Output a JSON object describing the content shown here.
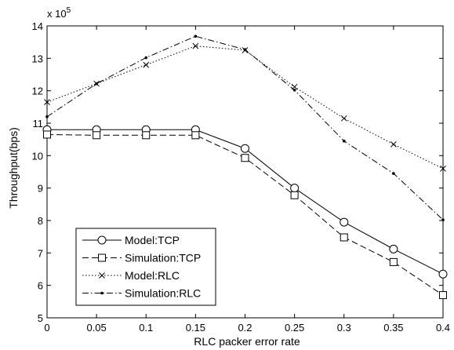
{
  "chart_data": {
    "type": "line",
    "xlabel": "RLC packer error rate",
    "ylabel": "Throughput(bps)",
    "y_multiplier_label": {
      "prefix": "x 10",
      "exponent": "5"
    },
    "xlim": [
      0,
      0.4
    ],
    "ylim": [
      5,
      14
    ],
    "x_ticks": [
      0,
      0.05,
      0.1,
      0.15,
      0.2,
      0.25,
      0.3,
      0.35,
      0.4
    ],
    "x_tick_labels": [
      "0",
      "0.05",
      "0.1",
      "0.15",
      "0.2",
      "0.25",
      "0.3",
      "0.35",
      "0.4"
    ],
    "y_ticks": [
      5,
      6,
      7,
      8,
      9,
      10,
      11,
      12,
      13,
      14
    ],
    "y_tick_labels": [
      "5",
      "6",
      "7",
      "8",
      "9",
      "10",
      "11",
      "12",
      "13",
      "14"
    ],
    "grid": false,
    "legend_position": "bottom-left",
    "x": [
      0,
      0.05,
      0.1,
      0.15,
      0.2,
      0.25,
      0.3,
      0.35,
      0.4
    ],
    "series": [
      {
        "name": "Model:TCP",
        "line": "solid",
        "marker": "circle",
        "color": "#000000",
        "values": [
          10.8,
          10.8,
          10.8,
          10.8,
          10.22,
          9.0,
          7.95,
          7.12,
          6.35
        ]
      },
      {
        "name": "Simulation:TCP",
        "line": "dashed",
        "marker": "square",
        "color": "#000000",
        "values": [
          10.65,
          10.63,
          10.63,
          10.63,
          9.93,
          8.78,
          7.48,
          6.72,
          5.7
        ]
      },
      {
        "name": "Model:RLC",
        "line": "dotted",
        "marker": "x",
        "color": "#000000",
        "values": [
          11.65,
          12.22,
          12.8,
          13.38,
          13.25,
          12.12,
          11.15,
          10.35,
          9.6
        ]
      },
      {
        "name": "Simulation:RLC",
        "line": "dashdot",
        "marker": "dot",
        "color": "#000000",
        "values": [
          11.2,
          12.22,
          13.02,
          13.68,
          13.27,
          12.02,
          10.45,
          9.45,
          8.02
        ]
      }
    ]
  }
}
